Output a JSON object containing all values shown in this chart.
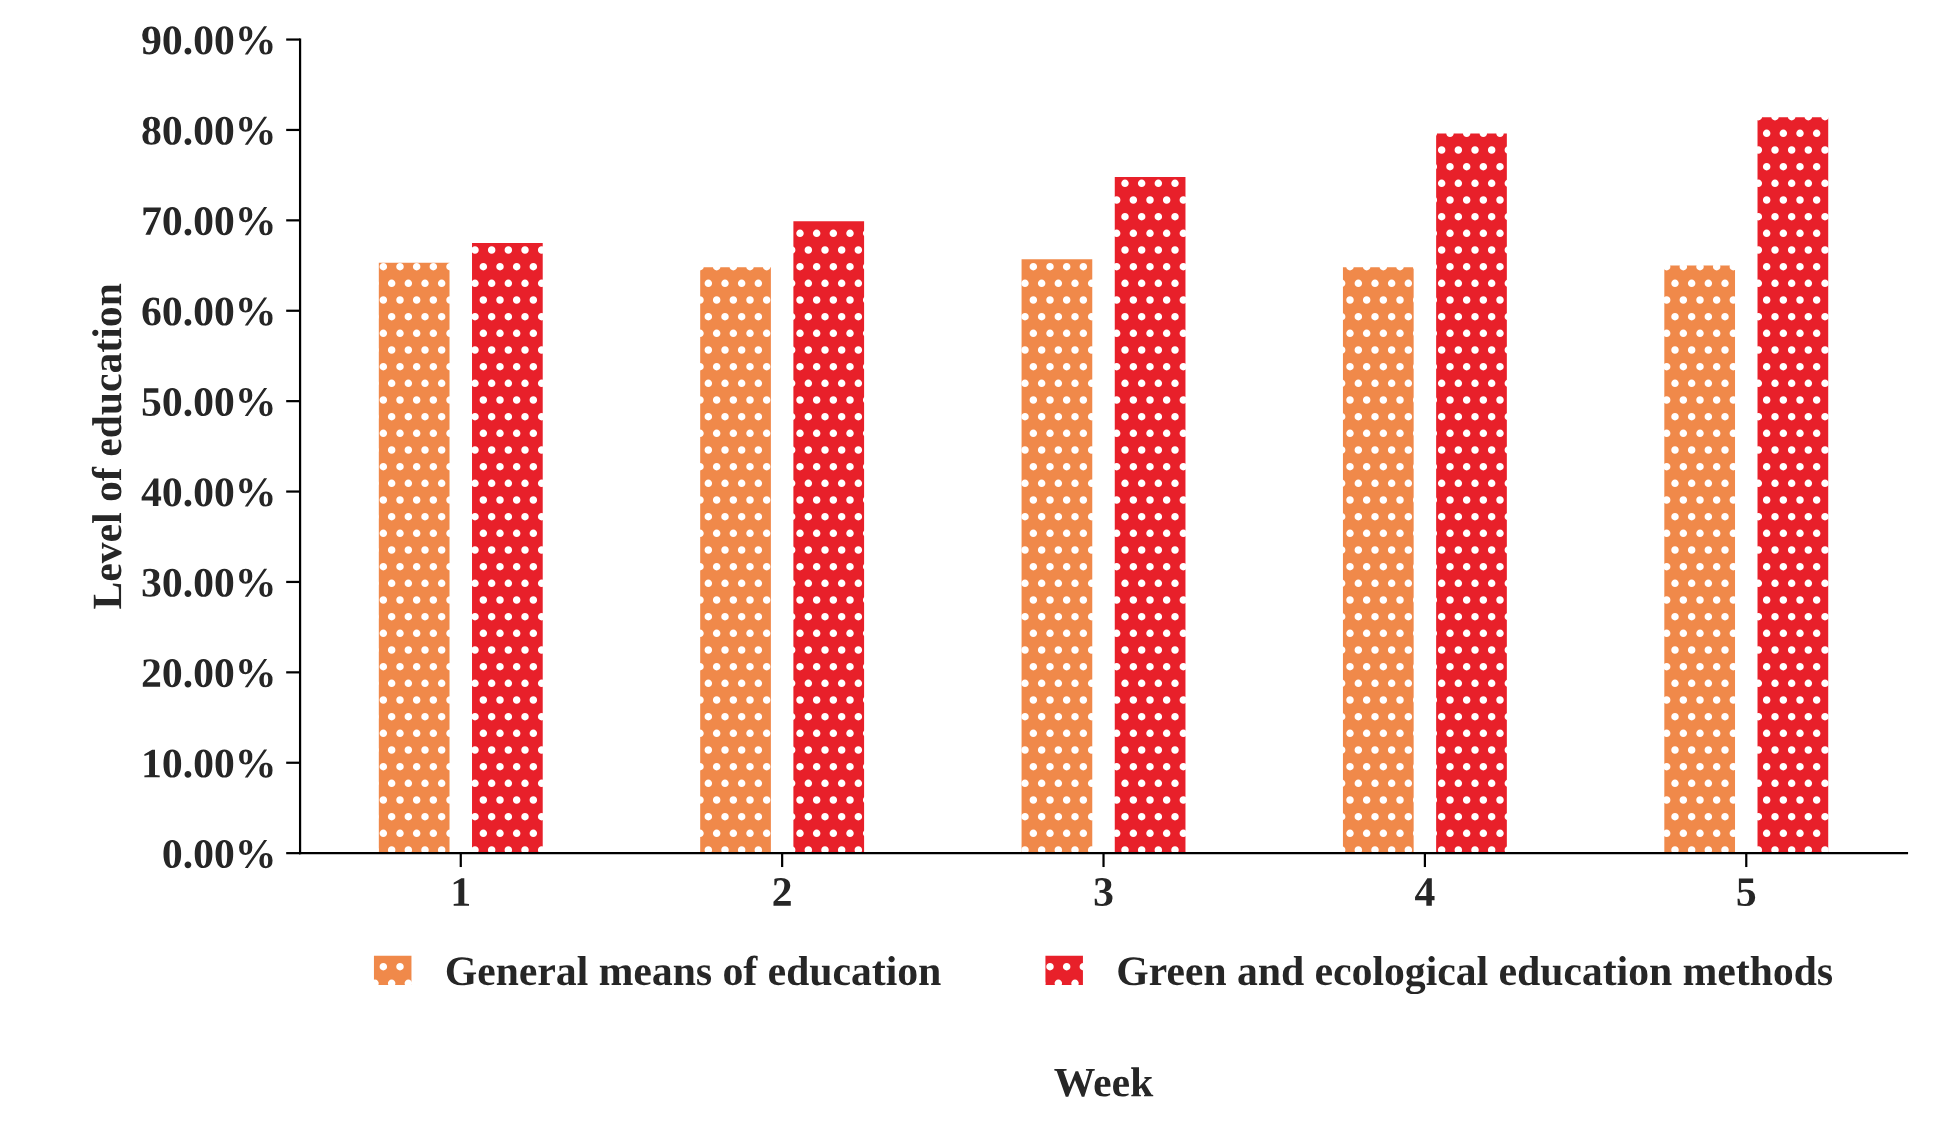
{
  "chart_data": {
    "type": "bar",
    "xlabel": "Week",
    "ylabel": "Level of education",
    "categories": [
      "1",
      "2",
      "3",
      "4",
      "5"
    ],
    "series": [
      {
        "name": "General means of education",
        "color": "#f0894a",
        "values": [
          65.3,
          64.8,
          65.7,
          64.8,
          65.0
        ]
      },
      {
        "name": "Green and ecological education methods",
        "color": "#e8202a",
        "values": [
          67.5,
          69.9,
          74.8,
          79.6,
          81.4
        ]
      }
    ],
    "ylim": [
      0,
      90
    ],
    "yticks": [
      {
        "value": 0,
        "label": "0.00%"
      },
      {
        "value": 10,
        "label": "10.00%"
      },
      {
        "value": 20,
        "label": "20.00%"
      },
      {
        "value": 30,
        "label": "30.00%"
      },
      {
        "value": 40,
        "label": "40.00%"
      },
      {
        "value": 50,
        "label": "50.00%"
      },
      {
        "value": 60,
        "label": "60.00%"
      },
      {
        "value": 70,
        "label": "70.00%"
      },
      {
        "value": 80,
        "label": "80.00%"
      },
      {
        "value": 90,
        "label": "90.00%"
      }
    ],
    "grid": false,
    "legend": "bottom"
  }
}
